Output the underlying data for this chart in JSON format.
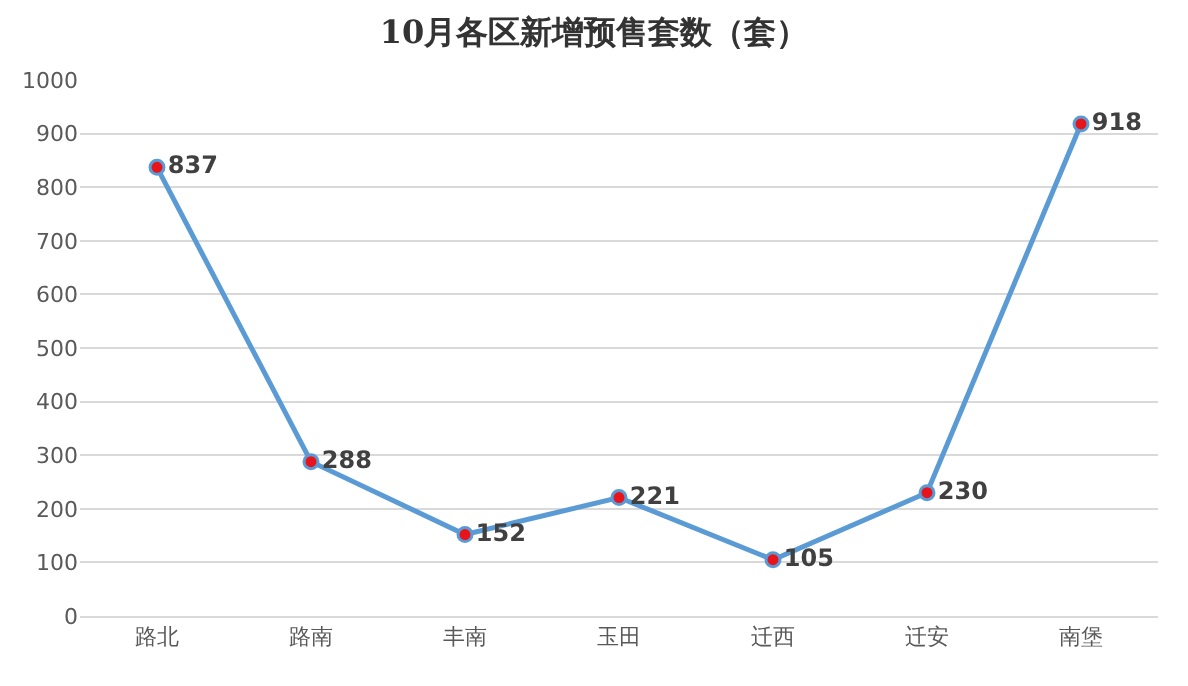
{
  "chart_data": {
    "type": "line",
    "title": "10月各区新增预售套数（套）",
    "categories": [
      "路北",
      "路南",
      "丰南",
      "玉田",
      "迁西",
      "迁安",
      "南堡"
    ],
    "series": [
      {
        "color": "#5b9bd5",
        "colors": [
          "#e8141c",
          "#e8141c",
          "#e8141c",
          "#e8141c",
          "#e8141c",
          "#e8141c",
          "#e8141c"
        ],
        "values": [
          837,
          288,
          152,
          221,
          105,
          230,
          918
        ]
      }
    ],
    "ylim": [
      0,
      1000
    ],
    "yticks": [
      0,
      100,
      200,
      300,
      400,
      500,
      600,
      700,
      800,
      900,
      1000
    ],
    "grid": "y",
    "marker": "circle",
    "line_style": "solid",
    "data_labels": true
  }
}
